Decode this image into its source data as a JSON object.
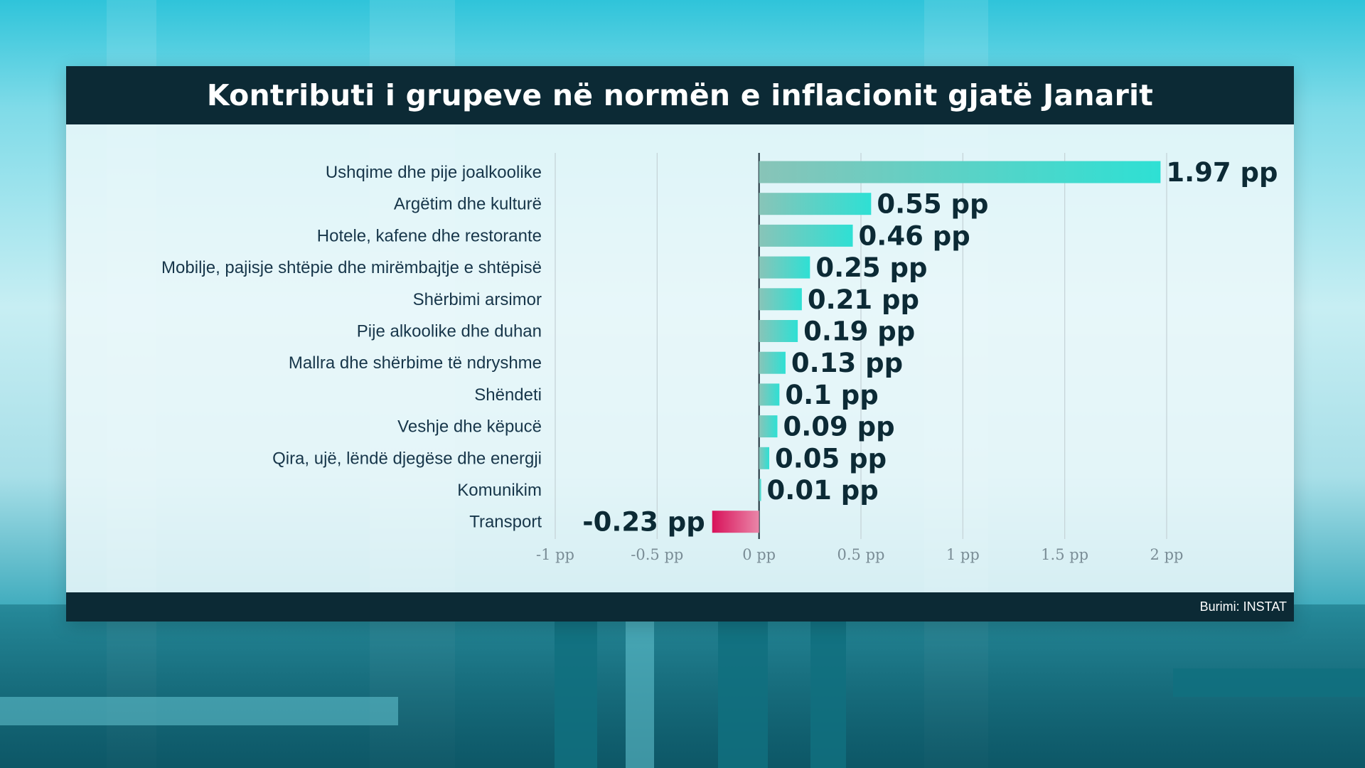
{
  "title": "Kontributi i grupeve në normën e inflacionit gjatë Janarit",
  "source": "Burimi: INSTAT",
  "colors": {
    "positive_start": "#88c4b8",
    "positive_end": "#2ee0d4",
    "negative_start": "#d8125a",
    "negative_end": "#ea86a8",
    "header_bg": "#0c2a35"
  },
  "chart_data": {
    "type": "bar",
    "orientation": "horizontal",
    "categories": [
      "Ushqime dhe pije joalkoolike",
      "Argëtim dhe kulturë",
      "Hotele, kafene dhe restorante",
      "Mobilje, pajisje shtëpie dhe mirëmbajtje e shtëpisë",
      "Shërbimi arsimor",
      "Pije alkoolike dhe duhan",
      "Mallra dhe shërbime të ndryshme",
      "Shëndeti",
      "Veshje dhe këpucë",
      "Qira, ujë, lëndë djegëse dhe energji",
      "Komunikim",
      "Transport"
    ],
    "values": [
      1.97,
      0.55,
      0.46,
      0.25,
      0.21,
      0.19,
      0.13,
      0.1,
      0.09,
      0.05,
      0.01,
      -0.23
    ],
    "value_labels": [
      "1.97 pp",
      "0.55 pp",
      "0.46 pp",
      "0.25 pp",
      "0.21 pp",
      "0.19 pp",
      "0.13 pp",
      "0.1 pp",
      "0.09 pp",
      "0.05 pp",
      "0.01 pp",
      "-0.23 pp"
    ],
    "xlim": [
      -1,
      2
    ],
    "x_ticks": [
      -1,
      -0.5,
      0,
      0.5,
      1,
      1.5,
      2
    ],
    "x_tick_labels": [
      "-1 pp",
      "-0.5 pp",
      "0 pp",
      "0.5 pp",
      "1 pp",
      "1.5 pp",
      "2 pp"
    ],
    "grid": true,
    "legend": "none"
  }
}
